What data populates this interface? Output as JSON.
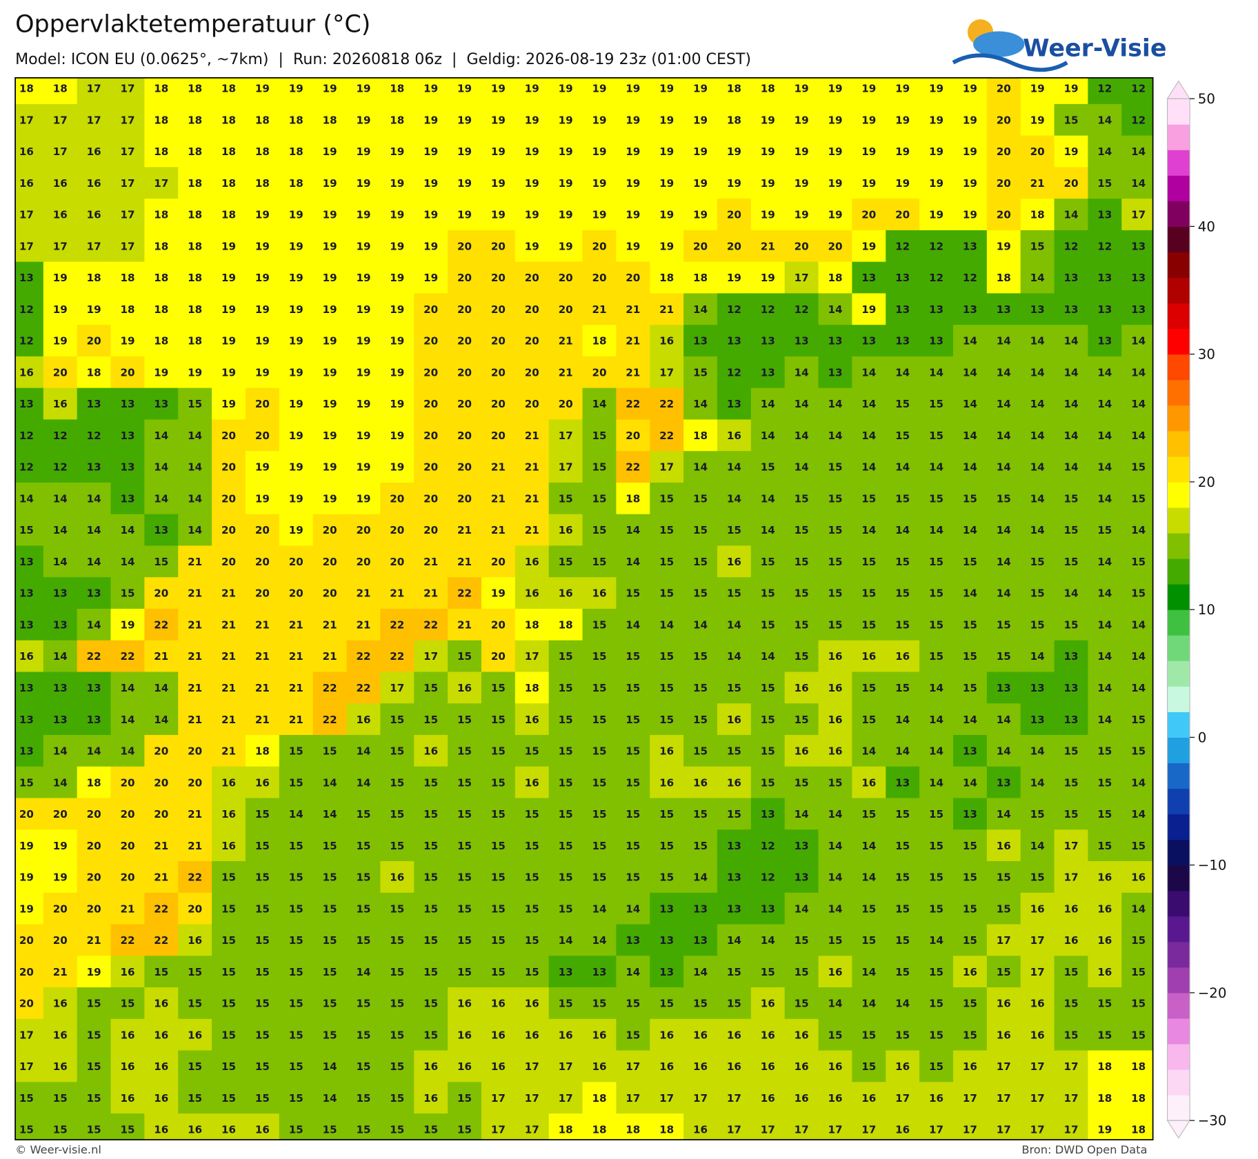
{
  "map": {
    "title": "Oppervlaktetemperatuur (°C)",
    "subtitle": "Model: ICON EU (0.0625°, ~7km)  |  Run: 20260818 06z  |  Geldig: 2026-08-19 23z (01:00 CEST)",
    "logo": "Weer-Visie",
    "credit": "© Weer-visie.nl",
    "source": "Bron: DWD Open Data",
    "grid": [
      [
        18,
        18,
        17,
        17,
        18,
        18,
        18,
        19,
        19,
        19,
        19,
        18,
        19,
        19,
        19,
        19,
        19,
        19,
        19,
        19,
        19,
        18,
        18,
        19,
        19,
        19,
        19,
        19,
        19,
        20,
        19,
        19,
        12,
        12
      ],
      [
        17,
        17,
        17,
        17,
        18,
        18,
        18,
        18,
        18,
        18,
        19,
        18,
        19,
        19,
        19,
        19,
        19,
        19,
        19,
        19,
        19,
        18,
        19,
        19,
        19,
        19,
        19,
        19,
        19,
        20,
        19,
        15,
        14,
        12
      ],
      [
        16,
        17,
        16,
        17,
        18,
        18,
        18,
        18,
        18,
        19,
        19,
        19,
        19,
        19,
        19,
        19,
        19,
        19,
        19,
        19,
        19,
        19,
        19,
        19,
        19,
        19,
        19,
        19,
        19,
        20,
        20,
        19,
        14,
        14
      ],
      [
        16,
        16,
        16,
        17,
        17,
        18,
        18,
        18,
        18,
        19,
        19,
        19,
        19,
        19,
        19,
        19,
        19,
        19,
        19,
        19,
        19,
        19,
        19,
        19,
        19,
        19,
        19,
        19,
        19,
        20,
        21,
        20,
        15,
        14
      ],
      [
        17,
        16,
        16,
        17,
        18,
        18,
        18,
        19,
        19,
        19,
        19,
        19,
        19,
        19,
        19,
        19,
        19,
        19,
        19,
        19,
        19,
        20,
        19,
        19,
        19,
        20,
        20,
        19,
        19,
        20,
        18,
        14,
        13,
        17
      ],
      [
        17,
        17,
        17,
        17,
        18,
        18,
        19,
        19,
        19,
        19,
        19,
        19,
        19,
        20,
        20,
        19,
        19,
        20,
        19,
        19,
        20,
        20,
        21,
        20,
        20,
        19,
        12,
        12,
        13,
        19,
        15,
        12,
        12,
        13
      ],
      [
        13,
        19,
        18,
        18,
        18,
        18,
        19,
        19,
        19,
        19,
        19,
        19,
        19,
        20,
        20,
        20,
        20,
        20,
        20,
        18,
        18,
        19,
        19,
        17,
        18,
        13,
        13,
        12,
        12,
        18,
        14,
        13,
        13,
        13
      ],
      [
        12,
        19,
        19,
        18,
        18,
        18,
        19,
        19,
        19,
        19,
        19,
        19,
        20,
        20,
        20,
        20,
        20,
        21,
        21,
        21,
        14,
        12,
        12,
        12,
        14,
        19,
        13,
        13,
        13,
        13,
        13,
        13,
        13,
        13
      ],
      [
        12,
        19,
        20,
        19,
        18,
        18,
        19,
        19,
        19,
        19,
        19,
        19,
        20,
        20,
        20,
        20,
        21,
        18,
        21,
        16,
        13,
        13,
        13,
        13,
        13,
        13,
        13,
        13,
        14,
        14,
        14,
        14,
        13,
        14
      ],
      [
        16,
        20,
        18,
        20,
        19,
        19,
        19,
        19,
        19,
        19,
        19,
        19,
        20,
        20,
        20,
        20,
        21,
        20,
        21,
        17,
        15,
        12,
        13,
        14,
        13,
        14,
        14,
        14,
        14,
        14,
        14,
        14,
        14,
        14
      ],
      [
        13,
        16,
        13,
        13,
        13,
        15,
        19,
        20,
        19,
        19,
        19,
        19,
        20,
        20,
        20,
        20,
        20,
        14,
        22,
        22,
        14,
        13,
        14,
        14,
        14,
        14,
        15,
        15,
        14,
        14,
        14,
        14,
        14,
        14
      ],
      [
        12,
        12,
        12,
        13,
        14,
        14,
        20,
        20,
        19,
        19,
        19,
        19,
        20,
        20,
        20,
        21,
        17,
        15,
        20,
        22,
        18,
        16,
        14,
        14,
        14,
        14,
        15,
        15,
        14,
        14,
        14,
        14,
        14,
        14
      ],
      [
        12,
        12,
        13,
        13,
        14,
        14,
        20,
        19,
        19,
        19,
        19,
        19,
        20,
        20,
        21,
        21,
        17,
        15,
        22,
        17,
        14,
        14,
        15,
        14,
        15,
        14,
        14,
        14,
        14,
        14,
        14,
        14,
        14,
        15
      ],
      [
        14,
        14,
        14,
        13,
        14,
        14,
        20,
        19,
        19,
        19,
        19,
        20,
        20,
        20,
        21,
        21,
        15,
        15,
        18,
        15,
        15,
        14,
        14,
        15,
        15,
        15,
        15,
        15,
        15,
        15,
        14,
        15,
        14,
        15
      ],
      [
        15,
        14,
        14,
        14,
        13,
        14,
        20,
        20,
        19,
        20,
        20,
        20,
        20,
        21,
        21,
        21,
        16,
        15,
        14,
        15,
        15,
        15,
        14,
        15,
        15,
        14,
        14,
        14,
        14,
        14,
        14,
        15,
        15,
        14
      ],
      [
        13,
        14,
        14,
        14,
        15,
        21,
        20,
        20,
        20,
        20,
        20,
        20,
        21,
        21,
        20,
        16,
        15,
        15,
        14,
        15,
        15,
        16,
        15,
        15,
        15,
        15,
        15,
        15,
        15,
        14,
        15,
        15,
        14,
        15
      ],
      [
        13,
        13,
        13,
        15,
        20,
        21,
        21,
        20,
        20,
        20,
        21,
        21,
        21,
        22,
        19,
        16,
        16,
        16,
        15,
        15,
        15,
        15,
        15,
        15,
        15,
        15,
        15,
        15,
        14,
        14,
        15,
        14,
        14,
        15
      ],
      [
        13,
        13,
        14,
        19,
        22,
        21,
        21,
        21,
        21,
        21,
        21,
        22,
        22,
        21,
        20,
        18,
        18,
        15,
        14,
        14,
        14,
        14,
        15,
        15,
        15,
        15,
        15,
        15,
        15,
        15,
        15,
        15,
        14,
        14
      ],
      [
        16,
        14,
        22,
        22,
        21,
        21,
        21,
        21,
        21,
        21,
        22,
        22,
        17,
        15,
        20,
        17,
        15,
        15,
        15,
        15,
        15,
        14,
        14,
        15,
        16,
        16,
        16,
        15,
        15,
        15,
        14,
        13,
        14,
        14
      ],
      [
        13,
        13,
        13,
        14,
        14,
        21,
        21,
        21,
        21,
        22,
        22,
        17,
        15,
        16,
        15,
        18,
        15,
        15,
        15,
        15,
        15,
        15,
        15,
        16,
        16,
        15,
        15,
        14,
        15,
        13,
        13,
        13,
        14,
        14
      ],
      [
        13,
        13,
        13,
        14,
        14,
        21,
        21,
        21,
        21,
        22,
        16,
        15,
        15,
        15,
        15,
        16,
        15,
        15,
        15,
        15,
        15,
        16,
        15,
        15,
        16,
        15,
        14,
        14,
        14,
        14,
        13,
        13,
        14,
        15
      ],
      [
        13,
        14,
        14,
        14,
        20,
        20,
        21,
        18,
        15,
        15,
        14,
        15,
        16,
        15,
        15,
        15,
        15,
        15,
        15,
        16,
        15,
        15,
        15,
        16,
        16,
        14,
        14,
        14,
        13,
        14,
        14,
        15,
        15,
        15
      ],
      [
        15,
        14,
        18,
        20,
        20,
        20,
        16,
        16,
        15,
        14,
        14,
        15,
        15,
        15,
        15,
        16,
        15,
        15,
        15,
        16,
        16,
        16,
        15,
        15,
        15,
        16,
        13,
        14,
        14,
        13,
        14,
        15,
        15,
        14
      ],
      [
        20,
        20,
        20,
        20,
        20,
        21,
        16,
        15,
        14,
        14,
        15,
        15,
        15,
        15,
        15,
        15,
        15,
        15,
        15,
        15,
        15,
        15,
        13,
        14,
        14,
        15,
        15,
        15,
        13,
        14,
        15,
        15,
        15,
        14
      ],
      [
        19,
        19,
        20,
        20,
        21,
        21,
        16,
        15,
        15,
        15,
        15,
        15,
        15,
        15,
        15,
        15,
        15,
        15,
        15,
        15,
        15,
        13,
        12,
        13,
        14,
        14,
        15,
        15,
        15,
        16,
        14,
        17,
        15,
        15
      ],
      [
        19,
        19,
        20,
        20,
        21,
        22,
        15,
        15,
        15,
        15,
        15,
        16,
        15,
        15,
        15,
        15,
        15,
        15,
        15,
        15,
        14,
        13,
        12,
        13,
        14,
        14,
        15,
        15,
        15,
        15,
        15,
        17,
        16,
        16
      ],
      [
        19,
        20,
        20,
        21,
        22,
        20,
        15,
        15,
        15,
        15,
        15,
        15,
        15,
        15,
        15,
        15,
        15,
        14,
        14,
        13,
        13,
        13,
        13,
        14,
        14,
        15,
        15,
        15,
        15,
        15,
        16,
        16,
        16,
        14
      ],
      [
        20,
        20,
        21,
        22,
        22,
        16,
        15,
        15,
        15,
        15,
        15,
        15,
        15,
        15,
        15,
        15,
        14,
        14,
        13,
        13,
        13,
        14,
        14,
        15,
        15,
        15,
        15,
        14,
        15,
        17,
        17,
        16,
        16,
        15
      ],
      [
        20,
        21,
        19,
        16,
        15,
        15,
        15,
        15,
        15,
        15,
        14,
        15,
        15,
        15,
        15,
        15,
        13,
        13,
        14,
        13,
        14,
        15,
        15,
        15,
        16,
        14,
        15,
        15,
        16,
        15,
        17,
        15,
        16,
        15
      ],
      [
        20,
        16,
        15,
        15,
        16,
        15,
        15,
        15,
        15,
        15,
        15,
        15,
        15,
        16,
        16,
        16,
        15,
        15,
        15,
        15,
        15,
        15,
        16,
        15,
        14,
        14,
        14,
        15,
        15,
        16,
        16,
        15,
        15,
        15
      ],
      [
        17,
        16,
        15,
        16,
        16,
        16,
        15,
        15,
        15,
        15,
        15,
        15,
        15,
        16,
        16,
        16,
        16,
        16,
        15,
        16,
        16,
        16,
        16,
        16,
        15,
        15,
        15,
        15,
        15,
        16,
        16,
        15,
        15,
        15
      ],
      [
        17,
        16,
        15,
        16,
        16,
        15,
        15,
        15,
        15,
        14,
        15,
        15,
        16,
        16,
        16,
        17,
        17,
        16,
        17,
        16,
        16,
        16,
        16,
        16,
        16,
        15,
        16,
        15,
        16,
        17,
        17,
        17,
        18,
        18
      ],
      [
        15,
        15,
        15,
        16,
        16,
        15,
        15,
        15,
        15,
        14,
        15,
        15,
        16,
        15,
        17,
        17,
        17,
        18,
        17,
        17,
        17,
        17,
        16,
        16,
        16,
        16,
        17,
        16,
        17,
        17,
        17,
        17,
        18,
        18
      ],
      [
        15,
        15,
        15,
        15,
        16,
        16,
        16,
        16,
        15,
        15,
        15,
        15,
        15,
        15,
        17,
        17,
        18,
        18,
        18,
        18,
        16,
        17,
        17,
        17,
        17,
        17,
        16,
        17,
        17,
        17,
        17,
        17,
        19,
        18
      ]
    ],
    "colorbar": {
      "lim": [
        -30,
        50
      ],
      "ticks": [
        50,
        40,
        30,
        20,
        10,
        0,
        {
          "value": -10,
          "label": "−10"
        },
        {
          "value": -20,
          "label": "−20"
        },
        {
          "value": -30,
          "label": "−30"
        }
      ],
      "colors": [
        "#fdf0fb",
        "#fcd8f5",
        "#f8b8ee",
        "#e888e0",
        "#c860c8",
        "#a040b0",
        "#7a2a9c",
        "#5a1890",
        "#3a0c70",
        "#1c0848",
        "#0a1060",
        "#0a2090",
        "#1040b0",
        "#1868c8",
        "#20a0e0",
        "#40c8f8",
        "#c8f8e0",
        "#a0e8a8",
        "#70d878",
        "#40c040",
        "#009000",
        "#44aa00",
        "#80c000",
        "#c8dc00",
        "#ffff00",
        "#ffe000",
        "#ffc000",
        "#ff9800",
        "#ff7000",
        "#ff4800",
        "#ff0000",
        "#dd0000",
        "#b00000",
        "#880000",
        "#580020",
        "#800060",
        "#b000a0",
        "#e040d0",
        "#f8a0e0",
        "#ffe0f8"
      ]
    }
  }
}
